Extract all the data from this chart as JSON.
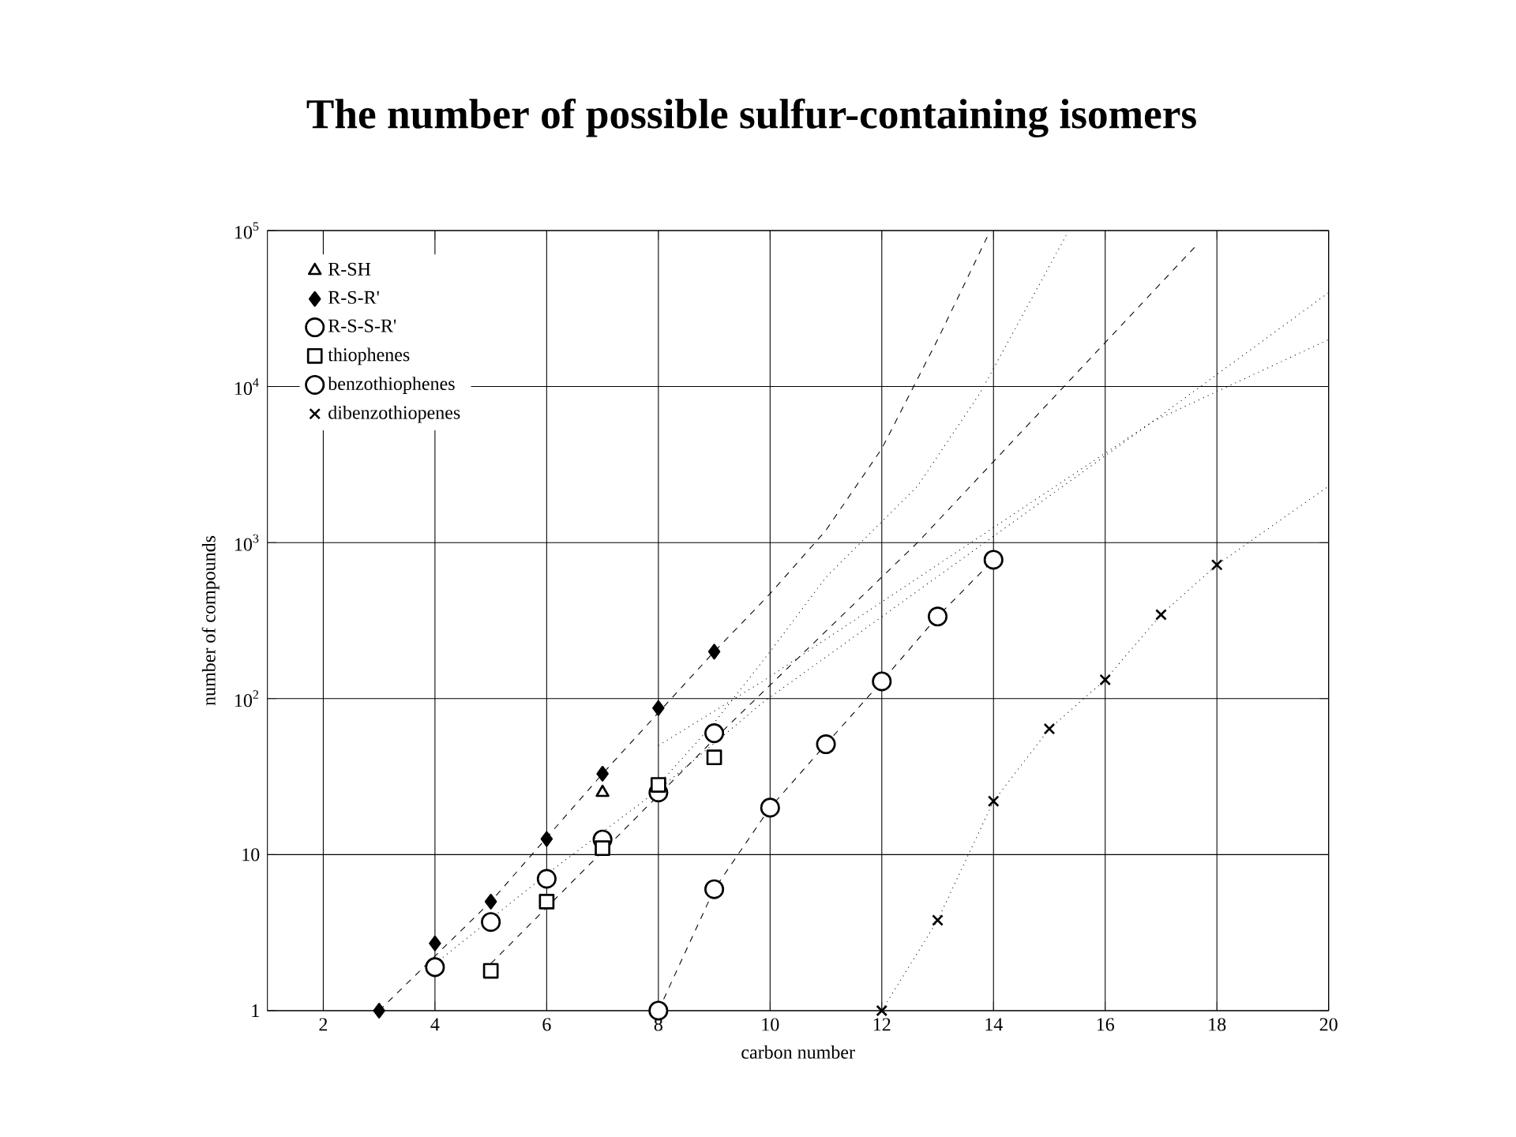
{
  "chart_data": {
    "type": "scatter",
    "title": "The number of possible sulfur-containing isomers",
    "xlabel": "carbon number",
    "ylabel": "number of compounds",
    "log": "y",
    "grid": true,
    "legend": "top left",
    "xlim": [
      1,
      20
    ],
    "xticks": [
      2,
      4,
      6,
      8,
      10,
      12,
      14,
      16,
      18,
      20
    ],
    "ylim": [
      1,
      100000
    ],
    "yticks": [
      1,
      10,
      {
        "value": 100,
        "label": "10$^{2}$"
      },
      {
        "value": 1000,
        "label": "10$^{3}$"
      },
      {
        "value": 10000,
        "label": "10$^{4}$"
      },
      {
        "value": 100000,
        "label": "10$^{5}$"
      }
    ],
    "series": [
      {
        "name": "R-SH",
        "color": "#000000",
        "marker": "triangle",
        "x": [
          7
        ],
        "values": [
          25
        ]
      },
      {
        "name": "R-S-R'",
        "color": "#000000",
        "marker": "diamond",
        "x": [
          3,
          4,
          5,
          6,
          7,
          8,
          9
        ],
        "values": [
          1,
          2.7,
          5,
          12.6,
          33,
          87,
          200
        ]
      },
      {
        "name": "R-S-S-R'",
        "color": "#000000",
        "marker": "circle",
        "x": [
          4,
          5,
          6,
          7,
          8,
          9
        ],
        "values": [
          1.9,
          3.7,
          7,
          12.5,
          25,
          60
        ]
      },
      {
        "name": "thiophenes",
        "color": "#000000",
        "marker": "square",
        "x": [
          5,
          6,
          7,
          8,
          9
        ],
        "values": [
          1.8,
          5,
          11,
          28,
          42
        ]
      },
      {
        "name": "benzothiophenes",
        "color": "#000000",
        "marker": "circle",
        "x": [
          8,
          9,
          10,
          11,
          12,
          13,
          14
        ],
        "values": [
          1,
          6,
          20,
          51,
          129,
          336,
          776
        ]
      },
      {
        "name": "dibenzothiopenes",
        "color": "#000000",
        "marker": "cross",
        "x": [
          12,
          13,
          14,
          15,
          16,
          17,
          18
        ],
        "values": [
          1,
          3.8,
          22,
          64,
          132,
          345,
          720
        ]
      },
      {
        "type": "line",
        "color": "#000000",
        "marker": "none",
        "line_style": "dashed",
        "x": [
          3,
          5,
          7,
          9,
          10,
          11,
          12,
          13,
          13.9
        ],
        "values": [
          1,
          5,
          33,
          200,
          470,
          1200,
          4000,
          20000,
          93000
        ]
      },
      {
        "type": "line",
        "color": "#000000",
        "marker": "none",
        "line_style": "dotted",
        "x": [
          8,
          9,
          10,
          11,
          12.64,
          13.76,
          15.3
        ],
        "values": [
          28,
          70,
          200,
          600,
          2300,
          9100,
          93000
        ]
      },
      {
        "type": "line",
        "color": "#000000",
        "marker": "none",
        "line_style": "dashed",
        "x": [
          5,
          9,
          12.64,
          17.67
        ],
        "values": [
          2,
          55,
          1000,
          83000
        ]
      },
      {
        "type": "line",
        "color": "#000000",
        "marker": "none",
        "line_style": "dotted",
        "x": [
          4,
          6,
          8,
          9.88,
          16.86,
          20
        ],
        "values": [
          2,
          7.5,
          26,
          95,
          6000,
          40000
        ]
      },
      {
        "type": "line",
        "color": "#000000",
        "marker": "none",
        "line_style": "dotted",
        "x": [
          8,
          9.88,
          16.86,
          20
        ],
        "values": [
          50,
          130,
          6000,
          20000
        ]
      },
      {
        "type": "line",
        "color": "#000000",
        "marker": "none",
        "line_style": "dashed",
        "x": [
          8,
          9,
          10,
          11,
          12,
          13,
          14
        ],
        "values": [
          1,
          6,
          20,
          51,
          129,
          336,
          776
        ]
      },
      {
        "type": "line",
        "color": "#000000",
        "marker": "none",
        "line_style": "dotted",
        "x": [
          12,
          13,
          14,
          15,
          16,
          17,
          18,
          20
        ],
        "values": [
          1,
          3.8,
          22,
          64,
          132,
          345,
          720,
          2300
        ]
      }
    ]
  }
}
